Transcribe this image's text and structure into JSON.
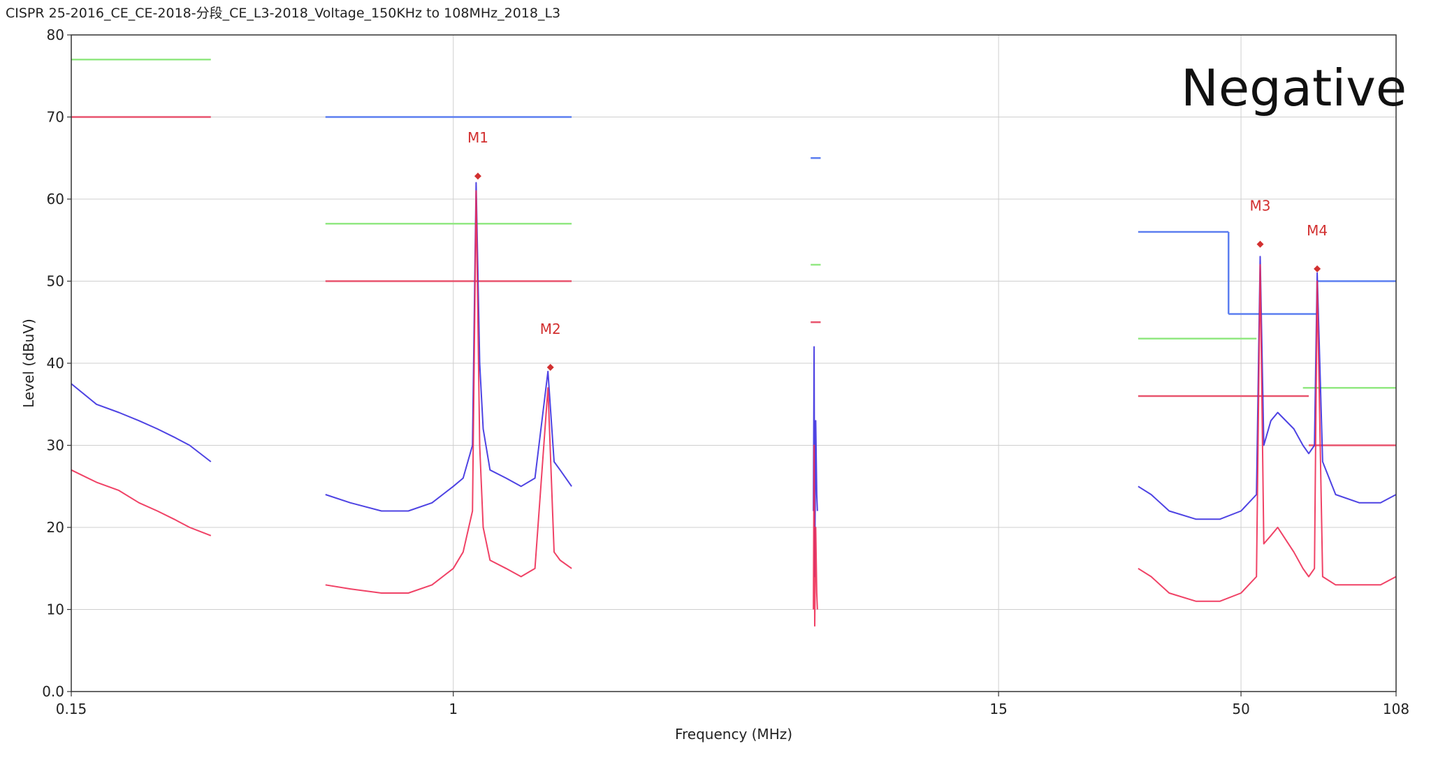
{
  "title": "CISPR 25-2016_CE_CE-2018-分段_CE_L3-2018_Voltage_150KHz to 108MHz_2018_L3",
  "annotation": "Negative",
  "chart_data": {
    "type": "line",
    "title": "CISPR 25-2016_CE_CE-2018-分段_CE_L3-2018_Voltage_150KHz to 108MHz_2018_L3",
    "xlabel": "Frequency (MHz)",
    "ylabel": "Level (dBuV)",
    "xscale": "log",
    "xlim": [
      0.15,
      108
    ],
    "ylim": [
      0,
      80
    ],
    "xticks": [
      0.15,
      1,
      15,
      50,
      108
    ],
    "xtick_labels": [
      "0.15",
      "1",
      "15",
      "50",
      "108"
    ],
    "yticks": [
      0,
      10,
      20,
      30,
      40,
      50,
      60,
      70,
      80
    ],
    "ytick_labels": [
      "0.0",
      "10",
      "20",
      "30",
      "40",
      "50",
      "60",
      "70",
      "80"
    ],
    "grid": true,
    "colors": {
      "peak": "#3b2fe0",
      "average": "#ee2d55",
      "peak_limit": "#5c7ef0",
      "qp_limit": "#92e882",
      "avg_limit": "#e8546e",
      "marker": "#d23030"
    },
    "limit_lines": [
      {
        "kind": "qp_limit",
        "segments": [
          [
            0.15,
            0.3,
            77
          ],
          [
            0.53,
            1.8,
            57
          ],
          [
            5.9,
            6.2,
            52
          ],
          [
            30,
            54,
            43
          ],
          [
            68,
            108,
            37
          ]
        ]
      },
      {
        "kind": "avg_limit",
        "segments": [
          [
            0.15,
            0.3,
            70
          ],
          [
            0.53,
            1.8,
            50
          ],
          [
            5.9,
            6.2,
            45
          ],
          [
            30,
            70,
            36
          ],
          [
            70,
            108,
            30
          ]
        ]
      },
      {
        "kind": "peak_limit",
        "segments": [
          [
            0.53,
            1.8,
            70
          ],
          [
            5.9,
            6.2,
            65
          ],
          [
            30,
            47,
            56
          ],
          [
            47,
            73,
            46
          ],
          [
            73,
            108,
            50
          ]
        ]
      }
    ],
    "series": [
      {
        "kind": "peak",
        "segments": [
          {
            "x": [
              0.15,
              0.17,
              0.19,
              0.21,
              0.23,
              0.25,
              0.27,
              0.3
            ],
            "y": [
              37.5,
              35,
              34,
              33,
              32,
              31,
              30,
              28
            ]
          },
          {
            "x": [
              0.53,
              0.6,
              0.7,
              0.8,
              0.9,
              1.0,
              1.05,
              1.1,
              1.12,
              1.14,
              1.16,
              1.2,
              1.3,
              1.4,
              1.5,
              1.6,
              1.65,
              1.7,
              1.8
            ],
            "y": [
              24,
              23,
              22,
              22,
              23,
              25,
              26,
              30,
              62,
              40,
              32,
              27,
              26,
              25,
              26,
              39,
              28,
              27,
              25
            ]
          },
          {
            "x": [
              5.98,
              6.0,
              6.02,
              6.05,
              6.08,
              6.1
            ],
            "y": [
              22,
              42,
              14,
              33,
              24,
              22
            ]
          },
          {
            "x": [
              30,
              32,
              35,
              40,
              45,
              50,
              54,
              55,
              56,
              58,
              60,
              65,
              68,
              70,
              72,
              73,
              75,
              80,
              90,
              100,
              108
            ],
            "y": [
              25,
              24,
              22,
              21,
              21,
              22,
              24,
              53,
              30,
              33,
              34,
              32,
              30,
              29,
              30,
              51,
              28,
              24,
              23,
              23,
              24
            ]
          }
        ]
      },
      {
        "kind": "average",
        "segments": [
          {
            "x": [
              0.15,
              0.17,
              0.19,
              0.21,
              0.23,
              0.25,
              0.27,
              0.3
            ],
            "y": [
              27,
              25.5,
              24.5,
              23,
              22,
              21,
              20,
              19
            ]
          },
          {
            "x": [
              0.53,
              0.6,
              0.7,
              0.8,
              0.9,
              1.0,
              1.05,
              1.1,
              1.12,
              1.14,
              1.16,
              1.2,
              1.3,
              1.4,
              1.5,
              1.6,
              1.65,
              1.7,
              1.8
            ],
            "y": [
              13,
              12.5,
              12,
              12,
              13,
              15,
              17,
              22,
              61,
              30,
              20,
              16,
              15,
              14,
              15,
              37,
              17,
              16,
              15
            ]
          },
          {
            "x": [
              5.98,
              6.0,
              6.02,
              6.05,
              6.08,
              6.1
            ],
            "y": [
              10,
              30,
              8,
              20,
              12,
              10
            ]
          },
          {
            "x": [
              30,
              32,
              35,
              40,
              45,
              50,
              54,
              55,
              56,
              58,
              60,
              65,
              68,
              70,
              72,
              73,
              75,
              80,
              90,
              100,
              108
            ],
            "y": [
              15,
              14,
              12,
              11,
              11,
              12,
              14,
              52,
              18,
              19,
              20,
              17,
              15,
              14,
              15,
              50,
              14,
              13,
              13,
              13,
              14
            ]
          }
        ]
      }
    ],
    "markers": [
      {
        "label": "M1",
        "x": 1.13,
        "y": 62.8
      },
      {
        "label": "M2",
        "x": 1.62,
        "y": 39.5
      },
      {
        "label": "M3",
        "x": 55,
        "y": 54.5
      },
      {
        "label": "M4",
        "x": 73,
        "y": 51.5
      }
    ]
  }
}
